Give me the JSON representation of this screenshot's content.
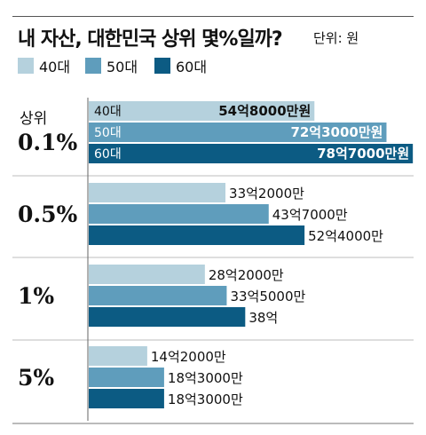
{
  "title": "내 자산, 대한민국 상위 몇%일까?",
  "unit": "단위: 원",
  "colors": {
    "40대": "#b5d1dd",
    "50대": "#5f9dbc",
    "60대": "#0c5b83"
  },
  "chart_data": {
    "type": "bar",
    "orientation": "horizontal",
    "title": "내 자산, 대한민국 상위 몇%일까?",
    "unit": "단위: 원",
    "series_names": [
      "40대",
      "50대",
      "60대"
    ],
    "groups": [
      {
        "label_top": "상위",
        "label": "0.1%",
        "values": [
          54.8,
          72.3,
          78.7
        ],
        "value_labels": [
          "54억8000만원",
          "72억3000만원",
          "78억7000만원"
        ],
        "inline": true
      },
      {
        "label_top": "",
        "label": "0.5%",
        "values": [
          33.2,
          43.7,
          52.4
        ],
        "value_labels": [
          "33억2000만",
          "43억7000만",
          "52억4000만"
        ],
        "inline": false
      },
      {
        "label_top": "",
        "label": "1%",
        "values": [
          28.2,
          33.5,
          38.0
        ],
        "value_labels": [
          "28억2000만",
          "33억5000만",
          "38억"
        ],
        "inline": false
      },
      {
        "label_top": "",
        "label": "5%",
        "values": [
          14.2,
          18.3,
          18.3
        ],
        "value_labels": [
          "14억2000만",
          "18억3000만",
          "18억3000만"
        ],
        "inline": false
      }
    ],
    "value_unit": "억원"
  }
}
